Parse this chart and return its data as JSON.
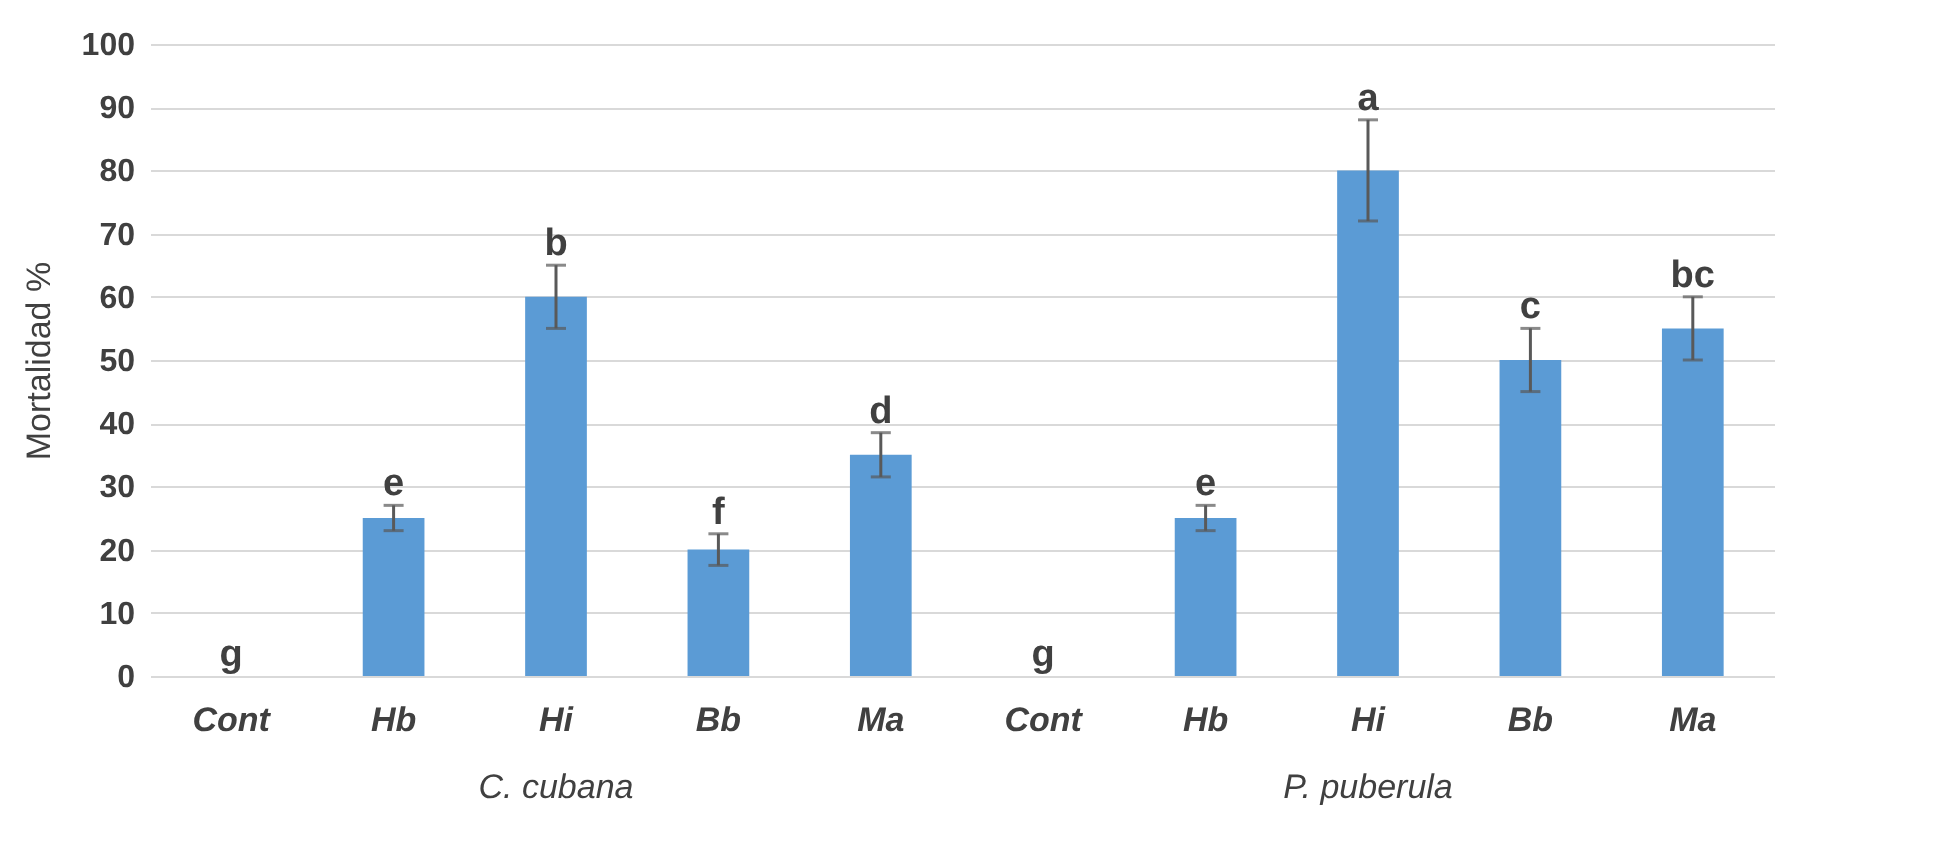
{
  "chart_data": {
    "type": "bar",
    "ylabel": "Mortalidad %",
    "categories": [
      "Cont",
      "Hb",
      "Hi",
      "Bb",
      "Ma",
      "Cont",
      "Hb",
      "Hi",
      "Bb",
      "Ma"
    ],
    "values": [
      0,
      25,
      60,
      20,
      35,
      0,
      25,
      80,
      50,
      55
    ],
    "errors": [
      null,
      2,
      5,
      2.5,
      3.5,
      null,
      2,
      8,
      5,
      5
    ],
    "value_labels": [
      "g",
      "e",
      "b",
      "f",
      "d",
      "g",
      "e",
      "a",
      "c",
      "bc"
    ],
    "color": "#5b9bd5",
    "ylim": [
      0,
      100
    ],
    "yticks": [
      0,
      10,
      20,
      30,
      40,
      50,
      60,
      70,
      80,
      90,
      100
    ],
    "grid": "y",
    "annotations": [
      "C. cubana",
      "P. puberula"
    ]
  }
}
